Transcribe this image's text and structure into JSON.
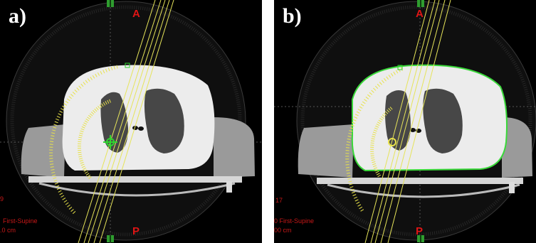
{
  "figure": {
    "panels": [
      {
        "label": "a)",
        "orientation_top": "A",
        "orientation_bottom": "P",
        "info_lines": [
          "9",
          "First-Supine",
          ".0 cm"
        ]
      },
      {
        "label": "b)",
        "orientation_top": "A",
        "orientation_bottom": "P",
        "info_lines": [
          "17",
          "0 First-Supine",
          "00 cm"
        ]
      }
    ]
  },
  "colors": {
    "background": "#000000",
    "beam": "#e6e45a",
    "arc": "#e8e24a",
    "contour": "#39d839",
    "orientation": "#e01515",
    "info_text": "#c81818",
    "marker": "#2f9d2f"
  }
}
